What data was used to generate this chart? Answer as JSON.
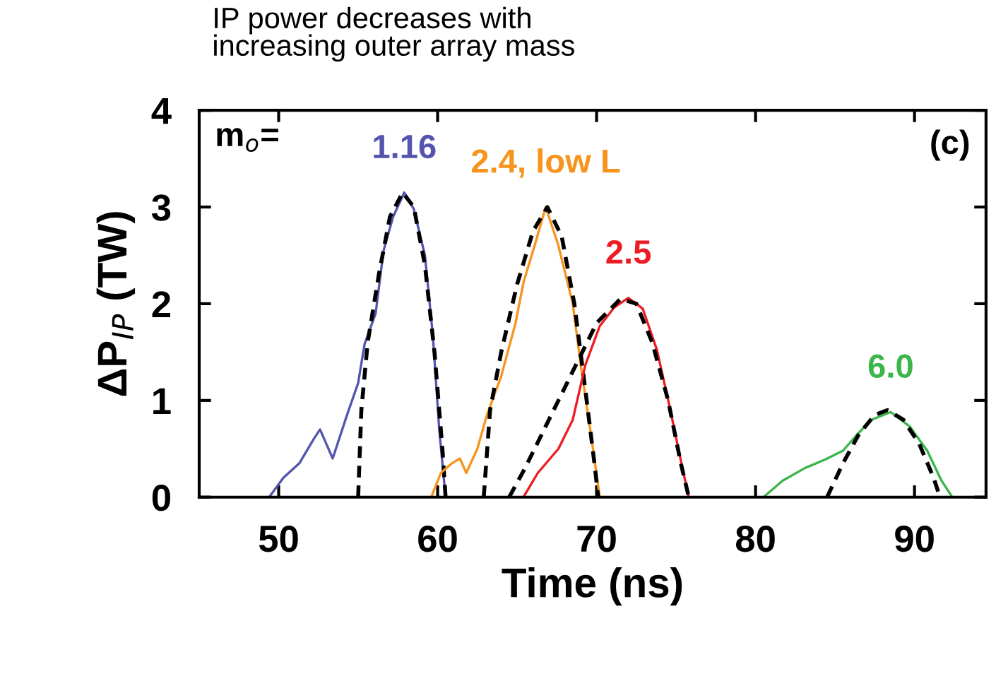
{
  "chart_data": {
    "type": "line",
    "title": "IP power decreases with\nincreasing outer array mass",
    "xlabel": "Time (ns)",
    "ylabel": "ΔP$_{IP}$ (TW)",
    "annotations": [
      "m$_{o}$=",
      "(c)"
    ],
    "xlim": [
      45,
      94.5
    ],
    "ylim": [
      0,
      4
    ],
    "xticks": [
      50,
      60,
      70,
      80,
      90
    ],
    "yticks": [
      0,
      1,
      2,
      3,
      4
    ],
    "grid": false,
    "legend": false,
    "marker": "none",
    "series": [
      {
        "name": "1.16",
        "color": "#5555b0",
        "line_style": "solid",
        "x": [
          49.4,
          50.3,
          51.3,
          52.2,
          52.6,
          53.4,
          54.3,
          55.0,
          55.4,
          56.1,
          56.6,
          57.2,
          57.9,
          58.5,
          59.2,
          59.7,
          60.1,
          60.5
        ],
        "values": [
          0.0,
          0.2,
          0.35,
          0.6,
          0.7,
          0.4,
          0.85,
          1.18,
          1.58,
          1.9,
          2.55,
          2.9,
          3.15,
          2.98,
          2.5,
          1.67,
          0.7,
          0.0
        ]
      },
      {
        "color": "#000000",
        "line_style": "dashed",
        "x": [
          55.0,
          55.2,
          55.6,
          56.3,
          57.0,
          57.8,
          58.5,
          59.2,
          59.8,
          60.3,
          60.5
        ],
        "values": [
          0,
          0.9,
          1.6,
          2.3,
          2.9,
          3.15,
          3.0,
          2.4,
          1.5,
          0.5,
          0
        ]
      },
      {
        "name": "2.4, low L",
        "color": "#f7941d",
        "line_style": "solid",
        "x": [
          59.6,
          60.2,
          60.9,
          61.4,
          61.8,
          62.5,
          63.1,
          64.0,
          64.9,
          65.4,
          66.1,
          66.8,
          67.6,
          68.5,
          69.0,
          69.6,
          70.2
        ],
        "values": [
          0,
          0.25,
          0.35,
          0.4,
          0.25,
          0.5,
          0.85,
          1.25,
          1.8,
          2.22,
          2.6,
          3.0,
          2.6,
          2.0,
          1.37,
          0.7,
          0
        ]
      },
      {
        "color": "#000000",
        "line_style": "dashed",
        "x": [
          62.9,
          63.3,
          64.0,
          65.0,
          66.0,
          66.9,
          67.8,
          68.6,
          69.3,
          69.9,
          70.1
        ],
        "values": [
          0,
          0.9,
          1.5,
          2.2,
          2.75,
          3.0,
          2.7,
          2.0,
          1.1,
          0.3,
          0
        ]
      },
      {
        "name": "2.5",
        "color": "#ed1c24",
        "line_style": "solid",
        "x": [
          65.4,
          66.3,
          67.6,
          68.5,
          69.3,
          70.2,
          71.1,
          72.0,
          72.9,
          73.8,
          74.6,
          75.4,
          75.8
        ],
        "values": [
          0,
          0.25,
          0.5,
          0.8,
          1.37,
          1.77,
          1.96,
          2.06,
          1.95,
          1.52,
          0.93,
          0.3,
          0
        ]
      },
      {
        "color": "#000000",
        "line_style": "dashed",
        "x": [
          64.5,
          65.5,
          67.0,
          68.5,
          70.0,
          71.5,
          72.5,
          73.5,
          74.5,
          75.3,
          75.8
        ],
        "values": [
          0,
          0.3,
          0.8,
          1.3,
          1.8,
          2.05,
          2.0,
          1.6,
          1.0,
          0.35,
          0
        ]
      },
      {
        "name": "6.0",
        "color": "#3cb54a",
        "line_style": "solid",
        "x": [
          80.5,
          81.7,
          83.1,
          84.4,
          85.5,
          86.4,
          87.3,
          88.5,
          89.7,
          90.8,
          91.7,
          92.3
        ],
        "values": [
          0,
          0.17,
          0.3,
          0.39,
          0.48,
          0.65,
          0.8,
          0.88,
          0.73,
          0.48,
          0.17,
          0.02
        ]
      },
      {
        "color": "#000000",
        "line_style": "dashed",
        "x": [
          84.5,
          85.5,
          86.5,
          87.5,
          88.3,
          89.3,
          90.3,
          91.2,
          91.6
        ],
        "values": [
          0,
          0.35,
          0.65,
          0.85,
          0.9,
          0.8,
          0.55,
          0.2,
          0
        ]
      }
    ]
  }
}
